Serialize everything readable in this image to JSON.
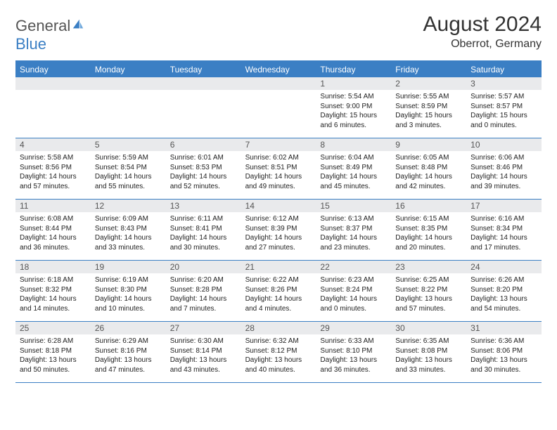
{
  "logo": {
    "text_general": "General",
    "text_blue": "Blue"
  },
  "title": "August 2024",
  "location": "Oberrot, Germany",
  "colors": {
    "header_bg": "#3b7fc4",
    "daynum_bg": "#e9eaec",
    "border": "#3b7fc4",
    "text": "#222222",
    "page_bg": "#ffffff"
  },
  "day_names": [
    "Sunday",
    "Monday",
    "Tuesday",
    "Wednesday",
    "Thursday",
    "Friday",
    "Saturday"
  ],
  "weeks": [
    [
      null,
      null,
      null,
      null,
      {
        "n": "1",
        "sr": "Sunrise: 5:54 AM",
        "ss": "Sunset: 9:00 PM",
        "dl": "Daylight: 15 hours and 6 minutes."
      },
      {
        "n": "2",
        "sr": "Sunrise: 5:55 AM",
        "ss": "Sunset: 8:59 PM",
        "dl": "Daylight: 15 hours and 3 minutes."
      },
      {
        "n": "3",
        "sr": "Sunrise: 5:57 AM",
        "ss": "Sunset: 8:57 PM",
        "dl": "Daylight: 15 hours and 0 minutes."
      }
    ],
    [
      {
        "n": "4",
        "sr": "Sunrise: 5:58 AM",
        "ss": "Sunset: 8:56 PM",
        "dl": "Daylight: 14 hours and 57 minutes."
      },
      {
        "n": "5",
        "sr": "Sunrise: 5:59 AM",
        "ss": "Sunset: 8:54 PM",
        "dl": "Daylight: 14 hours and 55 minutes."
      },
      {
        "n": "6",
        "sr": "Sunrise: 6:01 AM",
        "ss": "Sunset: 8:53 PM",
        "dl": "Daylight: 14 hours and 52 minutes."
      },
      {
        "n": "7",
        "sr": "Sunrise: 6:02 AM",
        "ss": "Sunset: 8:51 PM",
        "dl": "Daylight: 14 hours and 49 minutes."
      },
      {
        "n": "8",
        "sr": "Sunrise: 6:04 AM",
        "ss": "Sunset: 8:49 PM",
        "dl": "Daylight: 14 hours and 45 minutes."
      },
      {
        "n": "9",
        "sr": "Sunrise: 6:05 AM",
        "ss": "Sunset: 8:48 PM",
        "dl": "Daylight: 14 hours and 42 minutes."
      },
      {
        "n": "10",
        "sr": "Sunrise: 6:06 AM",
        "ss": "Sunset: 8:46 PM",
        "dl": "Daylight: 14 hours and 39 minutes."
      }
    ],
    [
      {
        "n": "11",
        "sr": "Sunrise: 6:08 AM",
        "ss": "Sunset: 8:44 PM",
        "dl": "Daylight: 14 hours and 36 minutes."
      },
      {
        "n": "12",
        "sr": "Sunrise: 6:09 AM",
        "ss": "Sunset: 8:43 PM",
        "dl": "Daylight: 14 hours and 33 minutes."
      },
      {
        "n": "13",
        "sr": "Sunrise: 6:11 AM",
        "ss": "Sunset: 8:41 PM",
        "dl": "Daylight: 14 hours and 30 minutes."
      },
      {
        "n": "14",
        "sr": "Sunrise: 6:12 AM",
        "ss": "Sunset: 8:39 PM",
        "dl": "Daylight: 14 hours and 27 minutes."
      },
      {
        "n": "15",
        "sr": "Sunrise: 6:13 AM",
        "ss": "Sunset: 8:37 PM",
        "dl": "Daylight: 14 hours and 23 minutes."
      },
      {
        "n": "16",
        "sr": "Sunrise: 6:15 AM",
        "ss": "Sunset: 8:35 PM",
        "dl": "Daylight: 14 hours and 20 minutes."
      },
      {
        "n": "17",
        "sr": "Sunrise: 6:16 AM",
        "ss": "Sunset: 8:34 PM",
        "dl": "Daylight: 14 hours and 17 minutes."
      }
    ],
    [
      {
        "n": "18",
        "sr": "Sunrise: 6:18 AM",
        "ss": "Sunset: 8:32 PM",
        "dl": "Daylight: 14 hours and 14 minutes."
      },
      {
        "n": "19",
        "sr": "Sunrise: 6:19 AM",
        "ss": "Sunset: 8:30 PM",
        "dl": "Daylight: 14 hours and 10 minutes."
      },
      {
        "n": "20",
        "sr": "Sunrise: 6:20 AM",
        "ss": "Sunset: 8:28 PM",
        "dl": "Daylight: 14 hours and 7 minutes."
      },
      {
        "n": "21",
        "sr": "Sunrise: 6:22 AM",
        "ss": "Sunset: 8:26 PM",
        "dl": "Daylight: 14 hours and 4 minutes."
      },
      {
        "n": "22",
        "sr": "Sunrise: 6:23 AM",
        "ss": "Sunset: 8:24 PM",
        "dl": "Daylight: 14 hours and 0 minutes."
      },
      {
        "n": "23",
        "sr": "Sunrise: 6:25 AM",
        "ss": "Sunset: 8:22 PM",
        "dl": "Daylight: 13 hours and 57 minutes."
      },
      {
        "n": "24",
        "sr": "Sunrise: 6:26 AM",
        "ss": "Sunset: 8:20 PM",
        "dl": "Daylight: 13 hours and 54 minutes."
      }
    ],
    [
      {
        "n": "25",
        "sr": "Sunrise: 6:28 AM",
        "ss": "Sunset: 8:18 PM",
        "dl": "Daylight: 13 hours and 50 minutes."
      },
      {
        "n": "26",
        "sr": "Sunrise: 6:29 AM",
        "ss": "Sunset: 8:16 PM",
        "dl": "Daylight: 13 hours and 47 minutes."
      },
      {
        "n": "27",
        "sr": "Sunrise: 6:30 AM",
        "ss": "Sunset: 8:14 PM",
        "dl": "Daylight: 13 hours and 43 minutes."
      },
      {
        "n": "28",
        "sr": "Sunrise: 6:32 AM",
        "ss": "Sunset: 8:12 PM",
        "dl": "Daylight: 13 hours and 40 minutes."
      },
      {
        "n": "29",
        "sr": "Sunrise: 6:33 AM",
        "ss": "Sunset: 8:10 PM",
        "dl": "Daylight: 13 hours and 36 minutes."
      },
      {
        "n": "30",
        "sr": "Sunrise: 6:35 AM",
        "ss": "Sunset: 8:08 PM",
        "dl": "Daylight: 13 hours and 33 minutes."
      },
      {
        "n": "31",
        "sr": "Sunrise: 6:36 AM",
        "ss": "Sunset: 8:06 PM",
        "dl": "Daylight: 13 hours and 30 minutes."
      }
    ]
  ]
}
